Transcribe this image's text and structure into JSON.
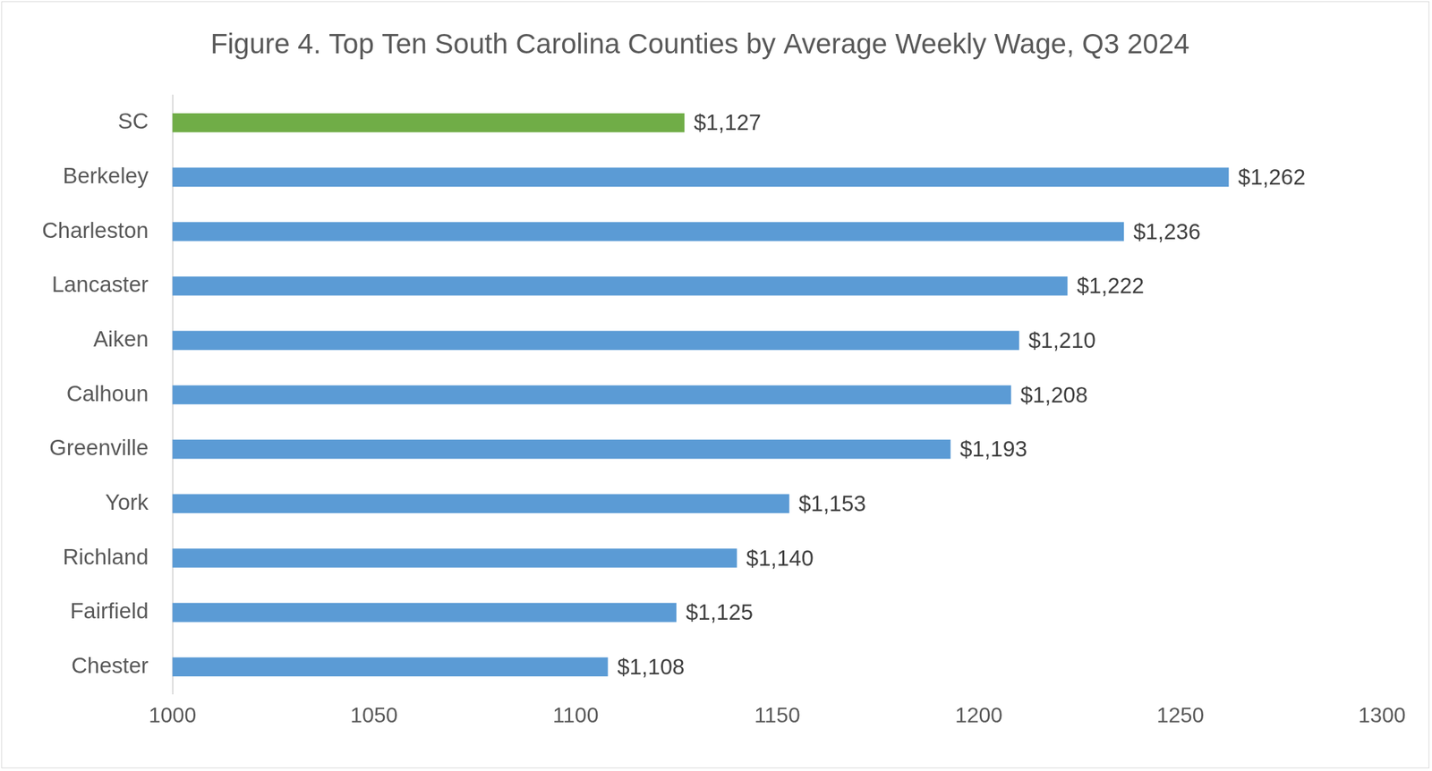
{
  "chart_data": {
    "type": "bar",
    "orientation": "horizontal",
    "title": "Figure 4. Top Ten South Carolina Counties by Average Weekly Wage, Q3 2024",
    "categories": [
      "SC",
      "Berkeley",
      "Charleston",
      "Lancaster",
      "Aiken",
      "Calhoun",
      "Greenville",
      "York",
      "Richland",
      "Fairfield",
      "Chester"
    ],
    "values": [
      1127,
      1262,
      1236,
      1222,
      1210,
      1208,
      1193,
      1153,
      1140,
      1125,
      1108
    ],
    "value_labels": [
      "$1,127",
      "$1,262",
      "$1,236",
      "$1,222",
      "$1,210",
      "$1,208",
      "$1,193",
      "$1,153",
      "$1,140",
      "$1,125",
      "$1,108"
    ],
    "colors": [
      "#70ad47",
      "#5b9bd5",
      "#5b9bd5",
      "#5b9bd5",
      "#5b9bd5",
      "#5b9bd5",
      "#5b9bd5",
      "#5b9bd5",
      "#5b9bd5",
      "#5b9bd5",
      "#5b9bd5"
    ],
    "xlim": [
      1000,
      1300
    ],
    "xticks": [
      1000,
      1050,
      1100,
      1150,
      1200,
      1250,
      1300
    ],
    "grid": false,
    "data_labels": true
  }
}
